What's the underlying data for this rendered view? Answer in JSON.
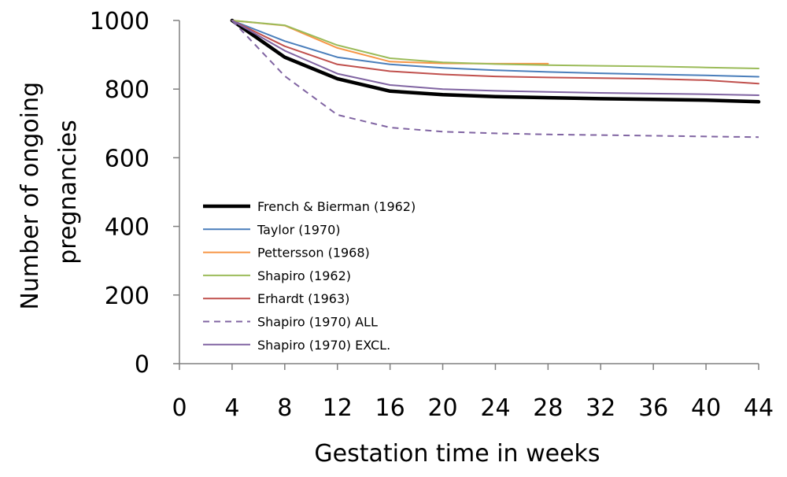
{
  "chart_data": {
    "type": "line",
    "title": "",
    "xlabel": "Gestation time in weeks",
    "ylabel_lines": [
      "Number of ongoing",
      "pregnancies"
    ],
    "xlim": [
      0,
      44
    ],
    "ylim": [
      0,
      1000
    ],
    "xticks": [
      0,
      4,
      8,
      12,
      16,
      20,
      24,
      28,
      32,
      36,
      40,
      44
    ],
    "yticks": [
      0,
      200,
      400,
      600,
      800,
      1000
    ],
    "grid": false,
    "legend_position": "center-left",
    "series": [
      {
        "name": "French & Bierman (1962)",
        "color": "#000000",
        "style": "solid",
        "width": "heavy",
        "x": [
          4,
          8,
          12,
          16,
          20,
          24,
          28,
          32,
          36,
          40,
          44
        ],
        "y": [
          1000,
          893,
          830,
          794,
          784,
          778,
          775,
          772,
          770,
          768,
          763
        ]
      },
      {
        "name": "Taylor (1970)",
        "color": "#4a7ebb",
        "style": "solid",
        "width": "normal",
        "x": [
          4,
          8,
          12,
          16,
          20,
          24,
          28,
          32,
          36,
          40,
          44
        ],
        "y": [
          1000,
          940,
          893,
          872,
          862,
          855,
          850,
          846,
          843,
          840,
          836
        ]
      },
      {
        "name": "Pettersson (1968)",
        "color": "#f79646",
        "style": "solid",
        "width": "normal",
        "x": [
          4,
          8,
          12,
          16,
          20,
          24,
          28
        ],
        "y": [
          1000,
          985,
          920,
          880,
          875,
          874,
          874
        ]
      },
      {
        "name": "Shapiro (1962)",
        "color": "#9bbb59",
        "style": "solid",
        "width": "normal",
        "x": [
          4,
          8,
          12,
          16,
          20,
          24,
          28,
          32,
          36,
          40,
          44
        ],
        "y": [
          1000,
          986,
          928,
          890,
          878,
          873,
          870,
          868,
          866,
          863,
          860
        ]
      },
      {
        "name": "Erhardt (1963)",
        "color": "#c0504d",
        "style": "solid",
        "width": "normal",
        "x": [
          4,
          8,
          12,
          16,
          20,
          24,
          28,
          32,
          36,
          40,
          44
        ],
        "y": [
          1000,
          925,
          872,
          852,
          843,
          837,
          834,
          832,
          830,
          826,
          816
        ]
      },
      {
        "name": "Shapiro (1970) ALL",
        "color": "#8064a2",
        "style": "dashed",
        "width": "normal",
        "x": [
          4,
          8,
          12,
          16,
          20,
          24,
          28,
          32,
          36,
          40,
          44
        ],
        "y": [
          1000,
          838,
          725,
          688,
          676,
          671,
          668,
          666,
          664,
          662,
          660
        ]
      },
      {
        "name": "Shapiro (1970) EXCL.",
        "color": "#8064a2",
        "style": "solid",
        "width": "normal",
        "x": [
          4,
          8,
          12,
          16,
          20,
          24,
          28,
          32,
          36,
          40,
          44
        ],
        "y": [
          1000,
          912,
          845,
          812,
          800,
          795,
          792,
          789,
          787,
          785,
          782
        ]
      }
    ]
  }
}
